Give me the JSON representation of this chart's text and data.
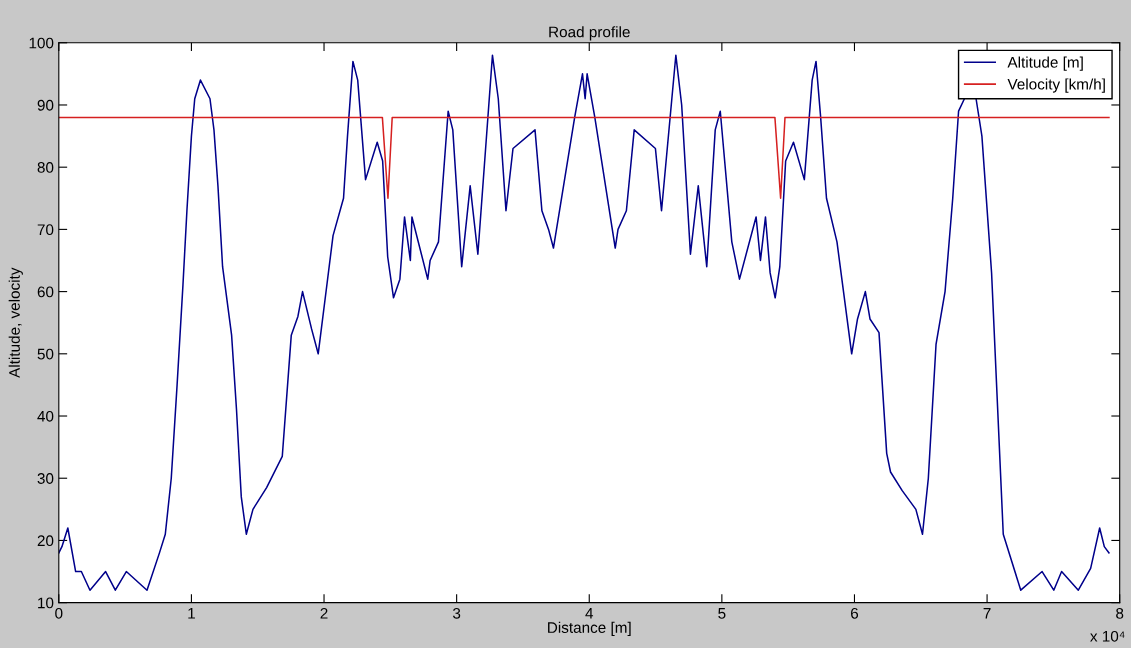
{
  "chart_data": {
    "type": "line",
    "title": "Road profile",
    "xlabel": "Distance [m]",
    "ylabel": "Altitude, velocity",
    "annotations": [
      "x 10⁴"
    ],
    "series": [
      {
        "name": "Altitude [m]",
        "color": "#00008b",
        "x": [
          0,
          0.0235,
          0.068,
          0.127,
          0.17,
          0.235,
          0.353,
          0.426,
          0.509,
          0.665,
          0.759,
          0.803,
          0.848,
          0.892,
          0.936,
          0.966,
          1.0,
          1.025,
          1.068,
          1.14,
          1.17,
          1.2,
          1.235,
          1.303,
          1.34,
          1.376,
          1.414,
          1.464,
          1.567,
          1.685,
          1.753,
          1.803,
          1.838,
          1.906,
          1.956,
          2.024,
          2.068,
          2.147,
          2.177,
          2.218,
          2.254,
          2.313,
          2.401,
          2.442,
          2.48,
          2.524,
          2.572,
          2.607,
          2.651,
          2.663,
          2.782,
          2.8,
          2.863,
          2.936,
          2.971,
          3.038,
          3.102,
          3.16,
          3.27,
          3.314,
          3.372,
          3.425,
          3.591,
          3.643,
          3.693,
          3.73,
          3.89,
          3.949,
          3.969,
          3.984,
          4.042,
          4.196,
          4.217,
          4.28,
          4.339,
          4.499,
          4.545,
          4.653,
          4.697,
          4.763,
          4.822,
          4.886,
          4.95,
          4.988,
          5.075,
          5.133,
          5.258,
          5.291,
          5.329,
          5.364,
          5.402,
          5.437,
          5.481,
          5.54,
          5.622,
          5.681,
          5.71,
          5.745,
          5.789,
          5.868,
          5.979,
          6.023,
          6.082,
          6.117,
          6.185,
          6.243,
          6.272,
          6.36,
          6.463,
          6.513,
          6.557,
          6.615,
          6.683,
          6.741,
          6.785,
          6.829,
          6.87,
          6.917,
          6.961,
          7.034,
          7.122,
          7.254,
          7.415,
          7.503,
          7.562,
          7.688,
          7.781,
          7.849,
          7.884,
          7.919
        ],
        "values": [
          18,
          19,
          22,
          15,
          15,
          12,
          15,
          12,
          15,
          12,
          18,
          21,
          30,
          45,
          61,
          73,
          85,
          91,
          94,
          91,
          86,
          77,
          64,
          53,
          41,
          27,
          21,
          25,
          28.5,
          33.5,
          53,
          56,
          60,
          54,
          50,
          61.5,
          69,
          75,
          85,
          97,
          94,
          78,
          84,
          81,
          65.6,
          59,
          62,
          72,
          65,
          72,
          62,
          65,
          68,
          89,
          86,
          64,
          77,
          66,
          98,
          91,
          73,
          83,
          86,
          73,
          70,
          67,
          88,
          95,
          91,
          95,
          88,
          67,
          70,
          73,
          86,
          83,
          73,
          98,
          90,
          66,
          77,
          64,
          86,
          89,
          68,
          62,
          72,
          65,
          72,
          63,
          59,
          64,
          81,
          84,
          78,
          94,
          97,
          88,
          75,
          68,
          50,
          55.6,
          60,
          55.6,
          53.4,
          34,
          31,
          28,
          25,
          21,
          30,
          51.5,
          60,
          75,
          89,
          91,
          null,
          91,
          85,
          63,
          21,
          12,
          15,
          12,
          15,
          12,
          15.5,
          22,
          19,
          18
        ]
      },
      {
        "name": "Velocity [km/h]",
        "color": "#d62020",
        "x": [
          0,
          2.44,
          2.482,
          2.514,
          5.4,
          5.443,
          5.476,
          7.919
        ],
        "values": [
          88,
          88,
          75,
          88,
          88,
          75,
          88,
          88
        ]
      }
    ],
    "xlim": [
      0,
      8
    ],
    "ylim": [
      10,
      100
    ],
    "xticks": [
      0,
      1,
      2,
      3,
      4,
      5,
      6,
      7,
      8
    ],
    "yticks": [
      10,
      20,
      30,
      40,
      50,
      60,
      70,
      80,
      90,
      100
    ],
    "legend": "top right",
    "grid": false,
    "line_style": "solid",
    "marker": "none"
  }
}
